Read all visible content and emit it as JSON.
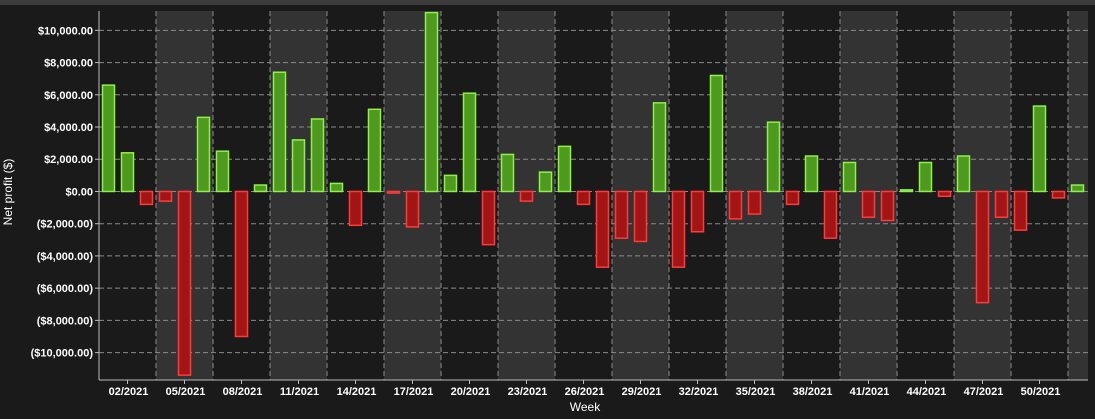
{
  "chart_data": {
    "type": "bar",
    "title": "",
    "xlabel": "Week",
    "ylabel": "Net profit ($)",
    "ylim": [
      -11700,
      11200
    ],
    "yticks": [
      10000,
      8000,
      6000,
      4000,
      2000,
      0,
      -2000,
      -4000,
      -6000,
      -8000,
      -10000
    ],
    "ytick_labels": [
      "$10,000.00",
      "$8,000.00",
      "$6,000.00",
      "$4,000.00",
      "$2,000.00",
      "$0.00",
      "($2,000.00)",
      "($4,000.00)",
      "($6,000.00)",
      "($8,000.00)",
      "($10,000.00)"
    ],
    "x_tick_labels": [
      "02/2021",
      "05/2021",
      "08/2021",
      "11/2021",
      "14/2021",
      "17/2021",
      "20/2021",
      "23/2021",
      "26/2021",
      "29/2021",
      "32/2021",
      "35/2021",
      "38/2021",
      "41/2021",
      "44/2021",
      "47/2021",
      "50/2021"
    ],
    "grid": true,
    "legend": false,
    "colors": {
      "background": "#1a1a1a",
      "band": "#333333",
      "grid": "#8a8a8a",
      "positive_fill": "#4e9a1e",
      "positive_stroke": "#8ef04a",
      "negative_fill": "#a31515",
      "negative_stroke": "#ff3a3a",
      "text": "#ffffff",
      "axis": "#bbbbbb"
    },
    "weeks": [
      1,
      2,
      3,
      4,
      5,
      6,
      7,
      8,
      9,
      10,
      11,
      12,
      13,
      14,
      15,
      16,
      17,
      18,
      19,
      20,
      21,
      22,
      23,
      24,
      25,
      26,
      27,
      28,
      29,
      30,
      31,
      32,
      33,
      34,
      35,
      36,
      37,
      38,
      39,
      40,
      41,
      42,
      43,
      44,
      45,
      46,
      47,
      48,
      49,
      50,
      51,
      52
    ],
    "values": [
      6600,
      2400,
      -800,
      -600,
      -11400,
      4600,
      2500,
      -9000,
      400,
      7400,
      3200,
      4500,
      500,
      -2100,
      5100,
      -100,
      -2200,
      11100,
      1000,
      6100,
      -3300,
      2300,
      -600,
      1200,
      2800,
      -800,
      -4700,
      -2900,
      -3100,
      5500,
      -4700,
      -2500,
      7200,
      -1700,
      -1400,
      4300,
      -800,
      2200,
      -2900,
      1800,
      -1600,
      -1800,
      100,
      1800,
      -300,
      2200,
      -6900,
      -1600,
      -2400,
      5300,
      -400,
      400
    ]
  }
}
